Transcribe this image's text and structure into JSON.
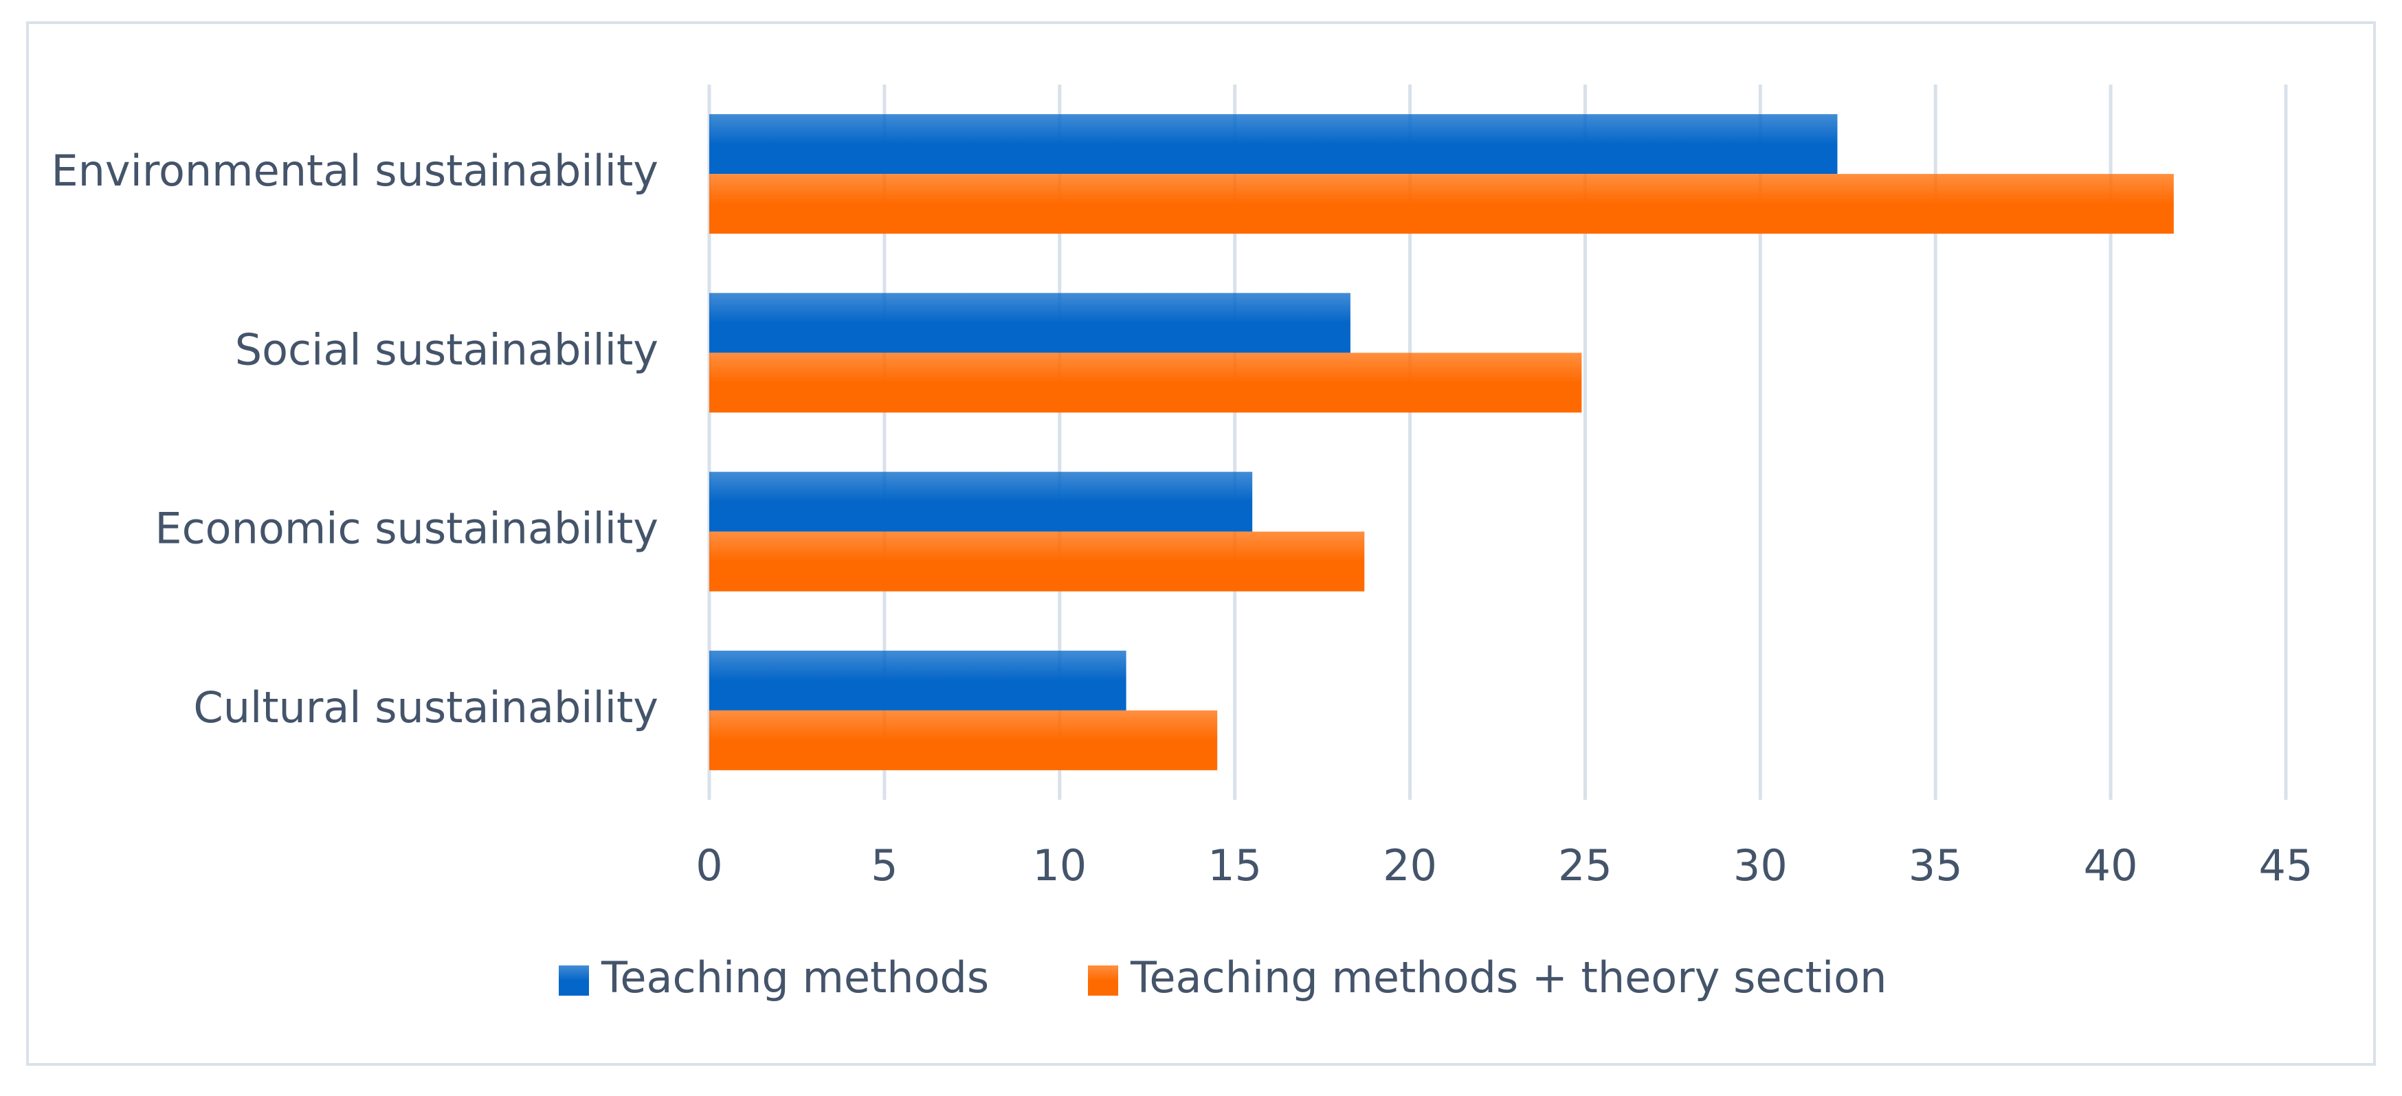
{
  "chart_data": {
    "type": "hbar",
    "categories": [
      "Environmental sustainability",
      "Social sustainability",
      "Economic sustainability",
      "Cultural sustainability"
    ],
    "series": [
      {
        "name": "Teaching methods",
        "color": "#0466c8",
        "values": [
          32.2,
          18.3,
          15.5,
          11.9
        ]
      },
      {
        "name": "Teaching methods + theory section",
        "color": "#ff6a00",
        "values": [
          41.8,
          24.9,
          18.7,
          14.5
        ]
      }
    ],
    "xlim": [
      0,
      45
    ],
    "xticks": [
      0,
      5,
      10,
      15,
      20,
      25,
      30,
      35,
      40,
      45
    ],
    "grid": true,
    "legend": "bottom"
  }
}
